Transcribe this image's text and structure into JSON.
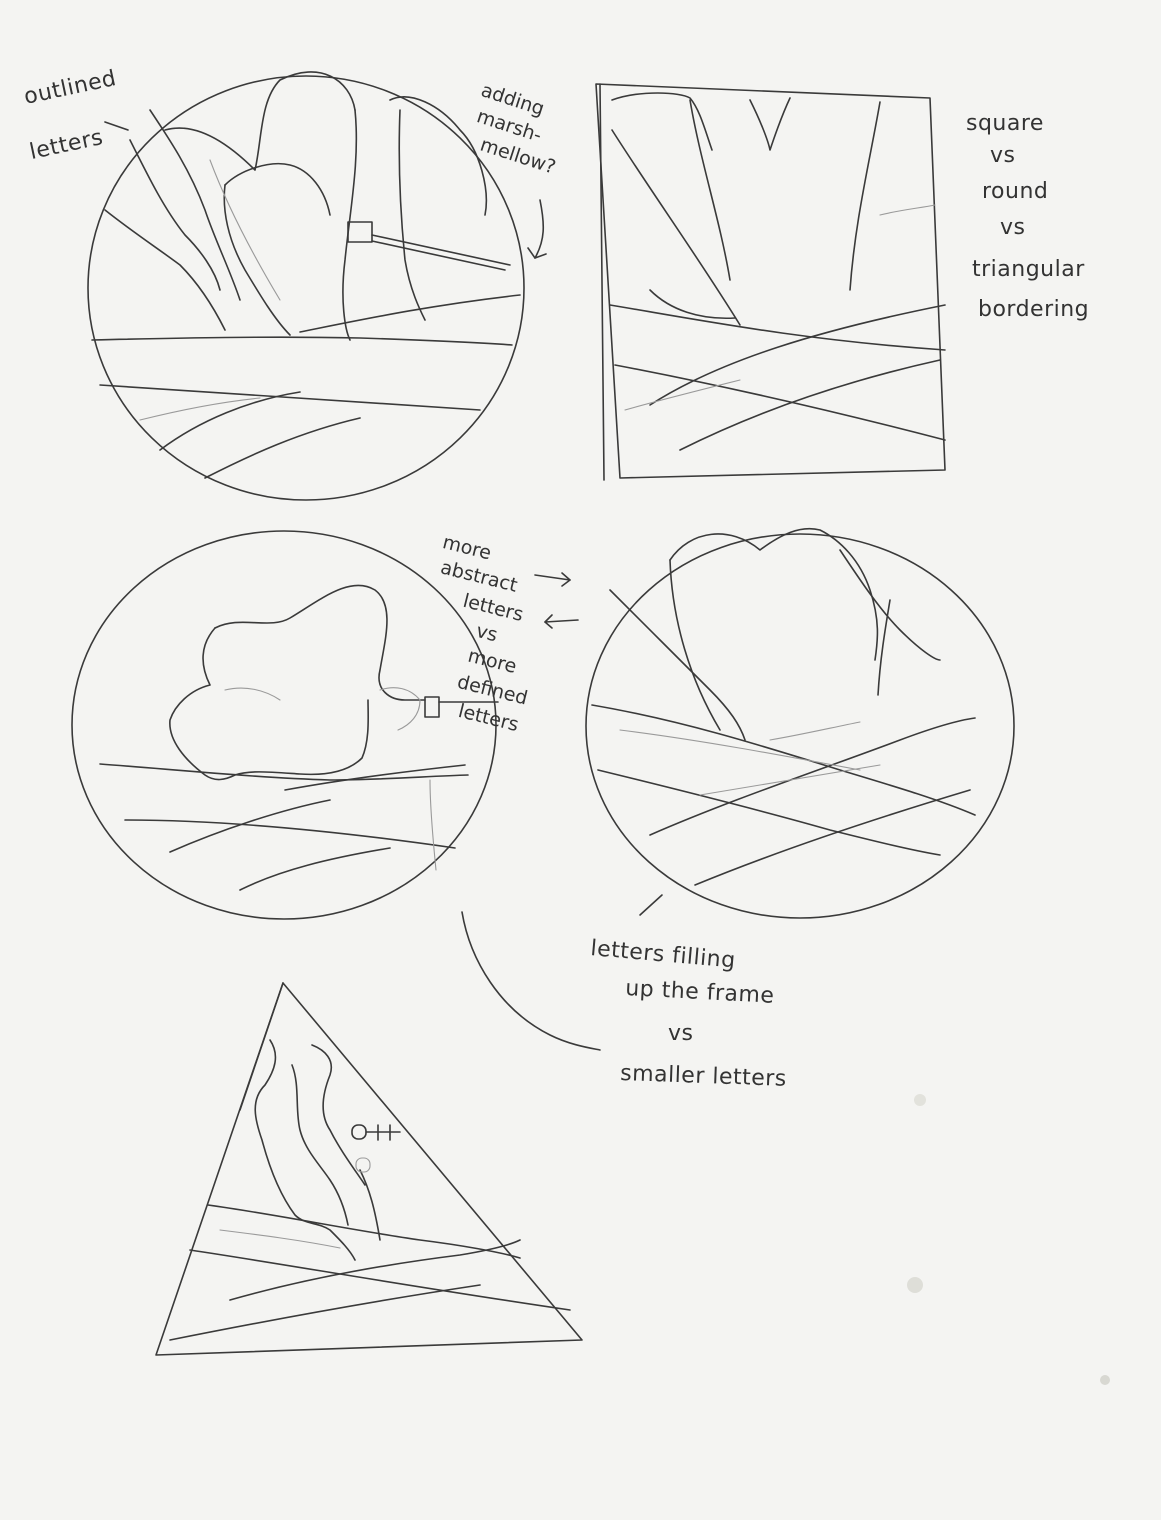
{
  "annotations": {
    "outlined_letters": [
      "outlined",
      "letters"
    ],
    "marshmallow": [
      "adding",
      "marsh-",
      "mellow?"
    ],
    "border_shapes": [
      "square",
      "vs",
      "round",
      "vs",
      "triangular",
      "bordering"
    ],
    "abstract_vs_defined": [
      "more",
      "abstract",
      "letters",
      "vs",
      "more",
      "defined",
      "letters"
    ],
    "filling_frame": [
      "letters filling",
      "up the frame",
      "vs",
      "smaller letters"
    ]
  },
  "colors": {
    "paper": "#f4f4f2",
    "pencil": "#3a3a3a",
    "pencil_light": "#9a9a9a"
  }
}
